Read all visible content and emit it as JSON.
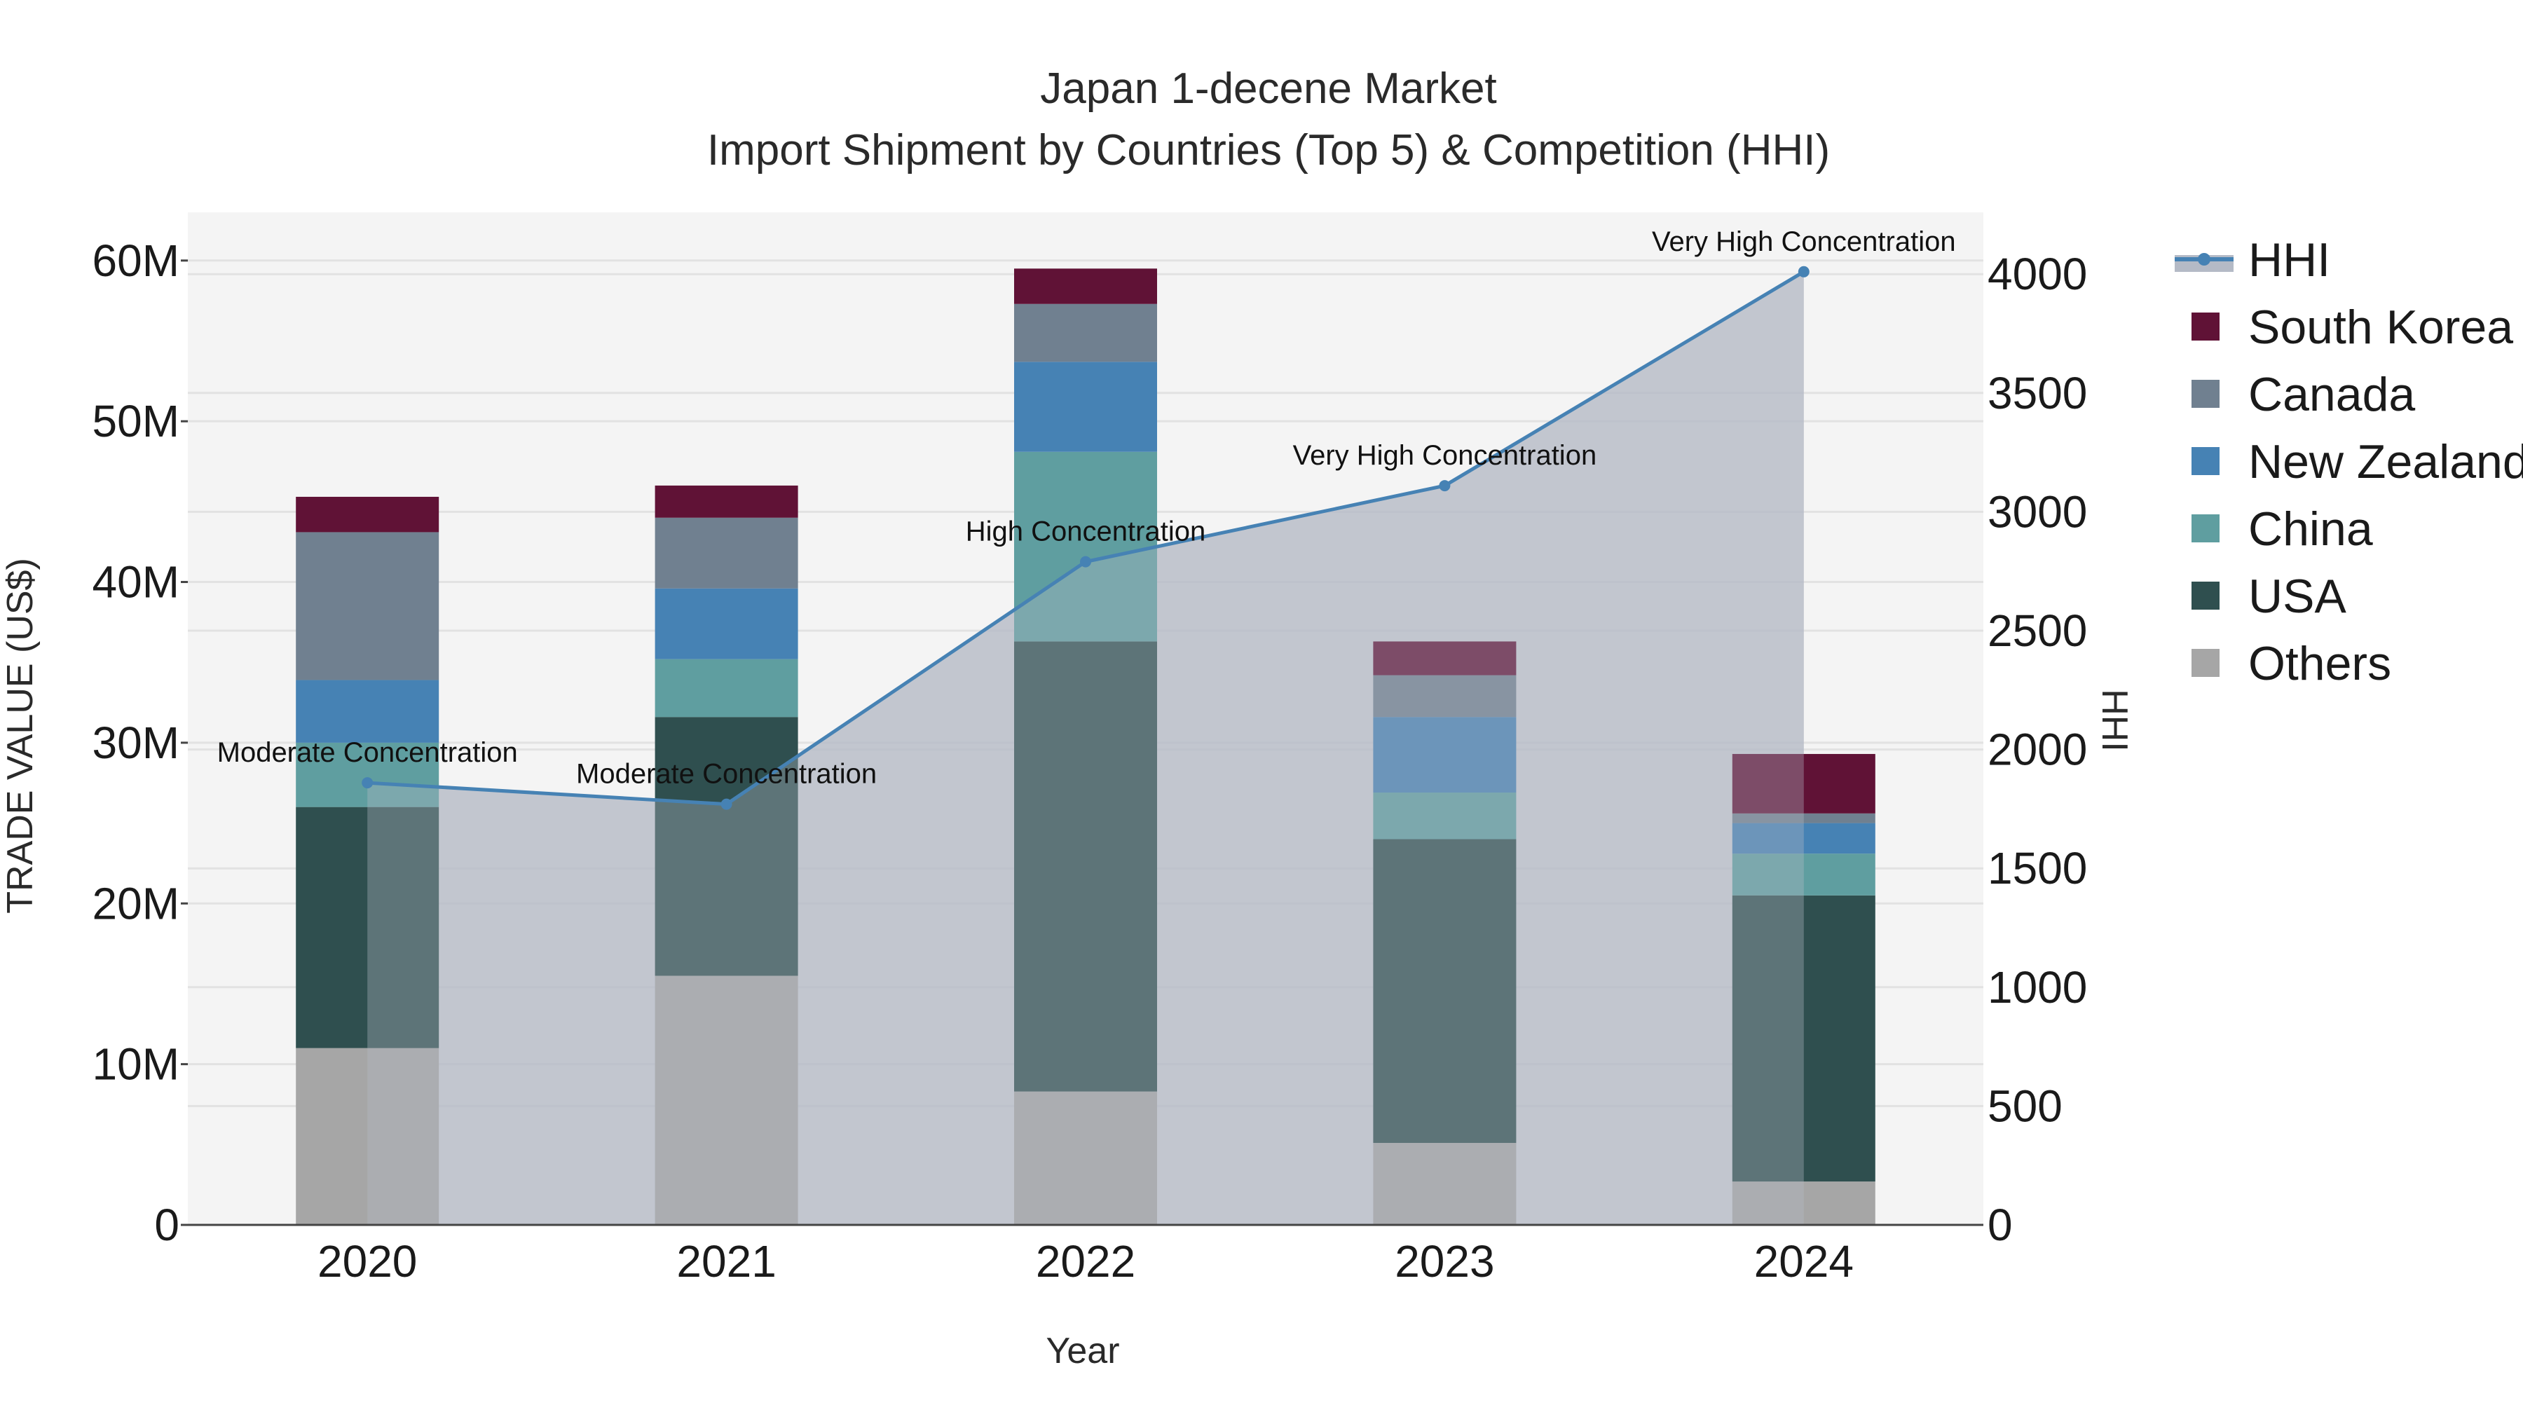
{
  "chart_data": {
    "type": "bar",
    "title": "Japan 1-decene Market",
    "subtitle": "Import Shipment by Countries (Top 5) & Competition (HHI)",
    "xlabel": "Year",
    "ylabel": "TRADE VALUE (US$)",
    "y2label": "HHI",
    "categories": [
      "2020",
      "2021",
      "2022",
      "2023",
      "2024"
    ],
    "ylim": [
      0,
      63000000
    ],
    "y2lim": [
      0,
      4260
    ],
    "y_ticks": [
      {
        "value": 0,
        "label": "0"
      },
      {
        "value": 10000000,
        "label": "10M"
      },
      {
        "value": 20000000,
        "label": "20M"
      },
      {
        "value": 30000000,
        "label": "30M"
      },
      {
        "value": 40000000,
        "label": "40M"
      },
      {
        "value": 50000000,
        "label": "50M"
      },
      {
        "value": 60000000,
        "label": "60M"
      }
    ],
    "y2_ticks": [
      {
        "value": 0,
        "label": "0"
      },
      {
        "value": 500,
        "label": "500"
      },
      {
        "value": 1000,
        "label": "1000"
      },
      {
        "value": 1500,
        "label": "1500"
      },
      {
        "value": 2000,
        "label": "2000"
      },
      {
        "value": 2500,
        "label": "2500"
      },
      {
        "value": 3000,
        "label": "3000"
      },
      {
        "value": 3500,
        "label": "3500"
      },
      {
        "value": 4000,
        "label": "4000"
      }
    ],
    "series": [
      {
        "name": "Others",
        "color": "#a6a6a6",
        "values": [
          11000000,
          15500000,
          8300000,
          5100000,
          2700000
        ]
      },
      {
        "name": "USA",
        "color": "#2f4f4f",
        "values": [
          15000000,
          16100000,
          28000000,
          18900000,
          17800000
        ]
      },
      {
        "name": "China",
        "color": "#5f9ea0",
        "values": [
          4000000,
          3600000,
          11800000,
          2900000,
          2600000
        ]
      },
      {
        "name": "New Zealand",
        "color": "#4682b4",
        "values": [
          3900000,
          4400000,
          5600000,
          4700000,
          1900000
        ]
      },
      {
        "name": "Canada",
        "color": "#708090",
        "values": [
          9200000,
          4400000,
          3600000,
          2600000,
          600000
        ]
      },
      {
        "name": "South Korea",
        "color": "#601236",
        "values": [
          2200000,
          2000000,
          2200000,
          2100000,
          3700000
        ]
      }
    ],
    "hhi": {
      "name": "HHI",
      "color": "#4682b4",
      "values": [
        1860,
        1770,
        2790,
        3110,
        4010
      ],
      "labels": [
        "Moderate Concentration",
        "Moderate Concentration",
        "High Concentration",
        "Very High Concentration",
        "Very High Concentration"
      ]
    },
    "legend": [
      "HHI",
      "South Korea",
      "Canada",
      "New Zealand",
      "China",
      "USA",
      "Others"
    ],
    "legend_position": "right"
  }
}
